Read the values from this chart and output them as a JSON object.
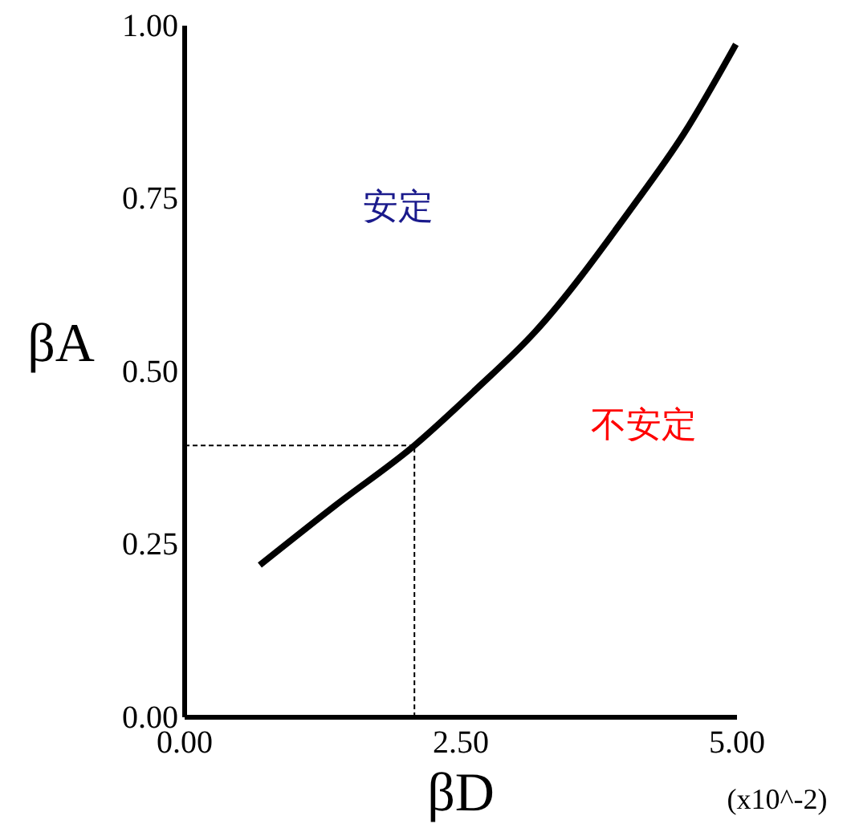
{
  "chart_data": {
    "type": "line",
    "xlabel": "βD",
    "ylabel": "βA",
    "x": [
      0.68,
      1.37,
      2.08,
      2.63,
      3.17,
      4.04,
      4.52,
      4.99
    ],
    "series": [
      {
        "color": "#000000",
        "values": [
          0.22,
          0.307,
          0.393,
          0.473,
          0.557,
          0.735,
          0.844,
          0.973
        ]
      }
    ],
    "xlim": [
      0,
      5
    ],
    "ylim": [
      0,
      1
    ],
    "xticks": [
      {
        "value": 0,
        "label": "0.00"
      },
      {
        "value": 2.5,
        "label": "2.50"
      },
      {
        "value": 5,
        "label": "5.00"
      }
    ],
    "yticks": [
      {
        "value": 0,
        "label": "0.00"
      },
      {
        "value": 0.25,
        "label": "0.25"
      },
      {
        "value": 0.5,
        "label": "0.50"
      },
      {
        "value": 0.75,
        "label": "0.75"
      },
      {
        "value": 1,
        "label": "1.00"
      }
    ],
    "ref_lines": [
      {
        "axis": "x",
        "value": 2.08,
        "color": "#000000",
        "line_style": "dashed"
      },
      {
        "axis": "y",
        "value": 0.393,
        "color": "#000000",
        "line_style": "dashed"
      }
    ],
    "annotations": [
      "安定",
      "不安定",
      "(x10^-2)"
    ],
    "grid": false,
    "marker": "none",
    "line_style": "solid"
  }
}
